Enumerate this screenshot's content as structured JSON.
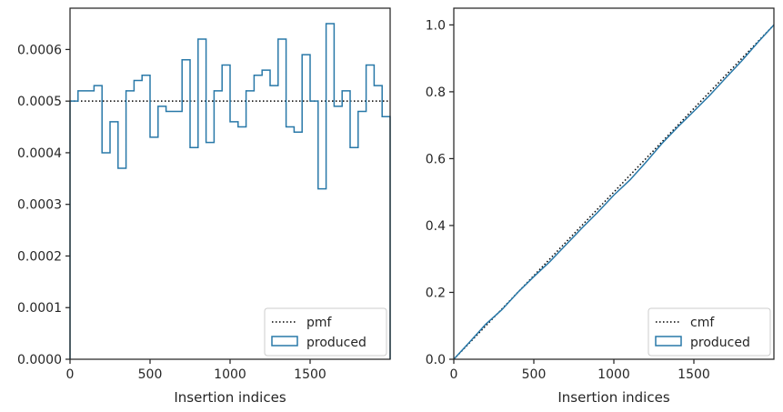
{
  "chart_data": [
    {
      "type": "histogram",
      "xlabel": "Insertion indices",
      "ylabel": "",
      "xlim": [
        0,
        2000
      ],
      "ylim": [
        0,
        0.00068
      ],
      "x_ticks": [
        "0",
        "500",
        "1000",
        "1500"
      ],
      "x_tick_values": [
        0,
        500,
        1000,
        1500
      ],
      "y_ticks": [
        "0.0000",
        "0.0001",
        "0.0002",
        "0.0003",
        "0.0004",
        "0.0005",
        "0.0006"
      ],
      "y_tick_values": [
        0,
        0.0001,
        0.0002,
        0.0003,
        0.0004,
        0.0005,
        0.0006
      ],
      "legend_position": "lower-right",
      "reference": {
        "name": "pmf",
        "style": "dotted",
        "color": "#000000",
        "y": 0.0005
      },
      "series": [
        {
          "name": "produced",
          "style": "step",
          "color": "#2878a8",
          "bin_edges": [
            0,
            50,
            100,
            150,
            200,
            250,
            300,
            350,
            400,
            450,
            500,
            550,
            600,
            650,
            700,
            750,
            800,
            850,
            900,
            950,
            1000,
            1050,
            1100,
            1150,
            1200,
            1250,
            1300,
            1350,
            1400,
            1450,
            1500,
            1550,
            1600,
            1650,
            1700,
            1750,
            1800,
            1850,
            1900,
            1950,
            2000
          ],
          "values": [
            0.0005,
            0.00052,
            0.00052,
            0.00053,
            0.0004,
            0.00046,
            0.00037,
            0.00052,
            0.00054,
            0.00055,
            0.00043,
            0.00049,
            0.00048,
            0.00048,
            0.00058,
            0.00041,
            0.00062,
            0.00042,
            0.00052,
            0.00057,
            0.00046,
            0.00045,
            0.00052,
            0.00055,
            0.00056,
            0.00053,
            0.00062,
            0.00045,
            0.00044,
            0.00059,
            0.0005,
            0.00033,
            0.00065,
            0.00049,
            0.00052,
            0.00041,
            0.00048,
            0.00057,
            0.00053,
            0.00047
          ]
        }
      ]
    },
    {
      "type": "line",
      "xlabel": "Insertion indices",
      "ylabel": "",
      "xlim": [
        0,
        2000
      ],
      "ylim": [
        0,
        1.05
      ],
      "x_ticks": [
        "0",
        "500",
        "1000",
        "1500"
      ],
      "x_tick_values": [
        0,
        500,
        1000,
        1500
      ],
      "y_ticks": [
        "0.0",
        "0.2",
        "0.4",
        "0.6",
        "0.8",
        "1.0"
      ],
      "y_tick_values": [
        0,
        0.2,
        0.4,
        0.6,
        0.8,
        1.0
      ],
      "legend_position": "lower-right",
      "reference": {
        "name": "cmf",
        "style": "dotted",
        "color": "#000000",
        "x": [
          0,
          2000
        ],
        "y": [
          0,
          1
        ]
      },
      "series": [
        {
          "name": "produced",
          "style": "step",
          "color": "#2878a8",
          "x": [
            0,
            100,
            200,
            300,
            400,
            500,
            600,
            700,
            800,
            900,
            1000,
            1100,
            1200,
            1300,
            1400,
            1500,
            1600,
            1700,
            1800,
            1900,
            2000
          ],
          "y": [
            0,
            0.052,
            0.105,
            0.148,
            0.2,
            0.247,
            0.292,
            0.342,
            0.392,
            0.44,
            0.491,
            0.536,
            0.589,
            0.645,
            0.695,
            0.742,
            0.79,
            0.842,
            0.893,
            0.948,
            1.0
          ]
        }
      ]
    }
  ]
}
